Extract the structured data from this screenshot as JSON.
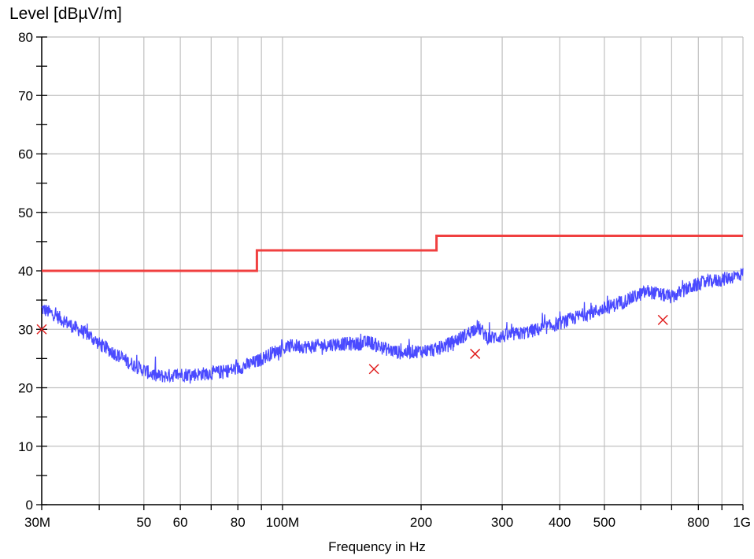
{
  "chart_data": {
    "type": "line",
    "ylabel": "Level [dBµV/m]",
    "xlabel": "Frequency in Hz",
    "x_scale": "log",
    "xlim": [
      30000000,
      1000000000
    ],
    "ylim": [
      0,
      80
    ],
    "y_ticks": [
      0,
      10,
      20,
      30,
      40,
      50,
      60,
      70,
      80
    ],
    "x_tick_labels": [
      {
        "value": 30000000,
        "label": "30M"
      },
      {
        "value": 50000000,
        "label": "50"
      },
      {
        "value": 60000000,
        "label": "60"
      },
      {
        "value": 80000000,
        "label": "80"
      },
      {
        "value": 100000000,
        "label": "100M"
      },
      {
        "value": 200000000,
        "label": "200"
      },
      {
        "value": 300000000,
        "label": "300"
      },
      {
        "value": 400000000,
        "label": "400"
      },
      {
        "value": 500000000,
        "label": "500"
      },
      {
        "value": 800000000,
        "label": "800"
      },
      {
        "value": 1000000000,
        "label": "1G"
      }
    ],
    "x_gridlines": [
      30000000,
      40000000,
      50000000,
      60000000,
      70000000,
      80000000,
      90000000,
      100000000,
      200000000,
      300000000,
      400000000,
      500000000,
      600000000,
      700000000,
      800000000,
      900000000,
      1000000000
    ],
    "grid": true,
    "colors": {
      "limit": "#f04040",
      "trace": "#4a4aff",
      "markers": "#e02020",
      "grid": "#c0c0c0"
    },
    "limit_line": {
      "x": [
        30000000,
        88000000,
        88000000,
        216000000,
        216000000,
        1000000000
      ],
      "y": [
        40,
        40,
        43.5,
        43.5,
        46,
        46
      ]
    },
    "trace": {
      "x": [
        30000000,
        32000000,
        35000000,
        38000000,
        40000000,
        43000000,
        46000000,
        50000000,
        53000000,
        56000000,
        60000000,
        65000000,
        70000000,
        75000000,
        80000000,
        88000000,
        95000000,
        105000000,
        115000000,
        130000000,
        145000000,
        155000000,
        165000000,
        180000000,
        200000000,
        215000000,
        230000000,
        250000000,
        265000000,
        280000000,
        300000000,
        330000000,
        360000000,
        400000000,
        450000000,
        500000000,
        560000000,
        620000000,
        700000000,
        760000000,
        820000000,
        900000000,
        1000000000
      ],
      "y": [
        33.5,
        32.5,
        30.5,
        29,
        27.5,
        26,
        24.5,
        23,
        22,
        22,
        22.3,
        22.3,
        22.5,
        22.8,
        23.3,
        24.5,
        26,
        27.2,
        27,
        27.5,
        27.5,
        27.8,
        26.8,
        26,
        26.3,
        26.5,
        27.5,
        29,
        30.5,
        28.5,
        28.8,
        29.3,
        30,
        31,
        32.5,
        33.5,
        35,
        36.5,
        35.5,
        37,
        38,
        38.5,
        39.5
      ]
    },
    "markers": {
      "x": [
        30000000,
        158000000,
        262000000,
        670000000
      ],
      "y": [
        30,
        23.2,
        25.8,
        31.6
      ]
    }
  }
}
